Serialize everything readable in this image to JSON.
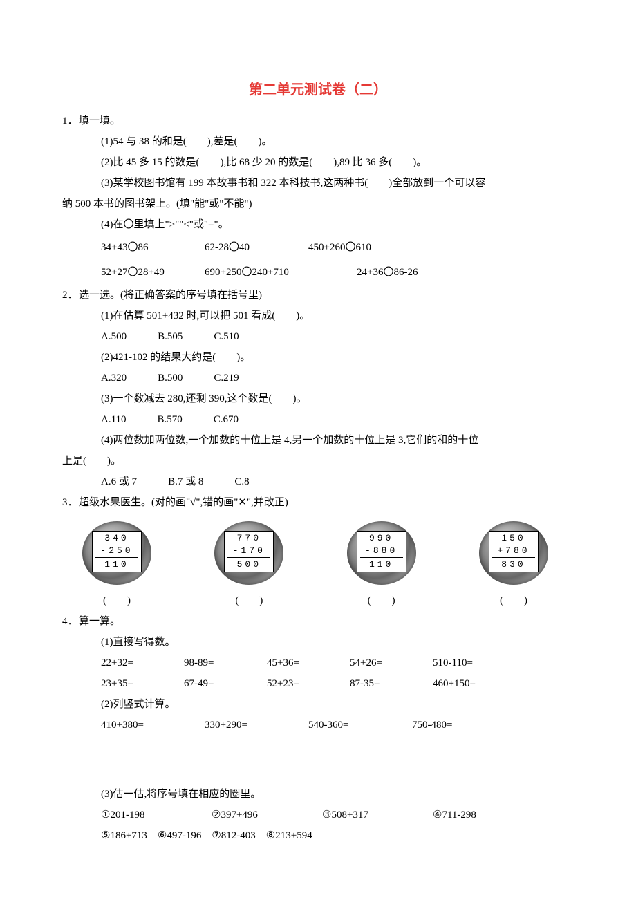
{
  "title": "第二单元测试卷（二）",
  "q1": {
    "num": "1．",
    "title": "填一填。",
    "p1": "(1)54 与 38 的和是(　　),差是(　　)。",
    "p2": "(2)比 45 多 15 的数是(　　),比 68 少 20 的数是(　　),89 比 36 多(　　)。",
    "p3a": "(3)某学校图书馆有 199 本故事书和 322 本科技书,这两种书(　　)全部放到一个可以容",
    "p3b": "纳 500 本书的图书架上。(填\"能\"或\"不能\")",
    "p4": "(4)在〇里填上\">\"\"<\"或\"=\"。",
    "p4row1a": "34+43〇86",
    "p4row1b": "62-28〇40",
    "p4row1c": "450+260〇610",
    "p4row2a": "52+27〇28+49",
    "p4row2b": "690+250〇240+710",
    "p4row2c": "24+36〇86-26"
  },
  "q2": {
    "num": "2．",
    "title": "选一选。(将正确答案的序号填在括号里)",
    "p1": "(1)在估算 501+432 时,可以把 501 看成(　　)。",
    "p1opt": "A.500　　　B.505　　　C.510",
    "p2": "(2)421-102 的结果大约是(　　)。",
    "p2opt": "A.320　　　B.500　　　C.219",
    "p3": "(3)一个数减去 280,还剩 390,这个数是(　　)。",
    "p3opt": "A.110　　　B.570　　　C.670",
    "p4a": "(4)两位数加两位数,一个加数的十位上是 4,另一个加数的十位上是 3,它们的和的十位",
    "p4b": "上是(　　)。",
    "p4opt": "A.6 或 7　　　B.7 或 8　　　C.8"
  },
  "q3": {
    "num": "3．",
    "title": "超级水果医生。(对的画\"√\",错的画\"✕\",并改正)",
    "paren": "(　　)",
    "watermelon_bg": "#888888",
    "fruits": [
      {
        "l1": "340",
        "l2": "-250",
        "l3": "110"
      },
      {
        "l1": "770",
        "l2": "-170",
        "l3": "500"
      },
      {
        "l1": "990",
        "l2": "-880",
        "l3": "110"
      },
      {
        "l1": "150",
        "l2": "+780",
        "l3": "830"
      }
    ]
  },
  "q4": {
    "num": "4．",
    "title": "算一算。",
    "p1": "(1)直接写得数。",
    "row1": [
      "22+32=",
      "98-89=",
      "45+36=",
      "54+26=",
      "510-110="
    ],
    "row2": [
      "23+35=",
      "67-49=",
      "52+23=",
      "87-35=",
      "460+150="
    ],
    "p2": "(2)列竖式计算。",
    "row3": [
      "410+380=",
      "330+290=",
      "540-360=",
      "750-480="
    ],
    "p3": "(3)估一估,将序号填在相应的圈里。",
    "row4": [
      "①201-198",
      "②397+496",
      "③508+317",
      "④711-298"
    ],
    "row5": [
      "⑤186+713　⑥497-196　⑦812-403　⑧213+594"
    ]
  }
}
